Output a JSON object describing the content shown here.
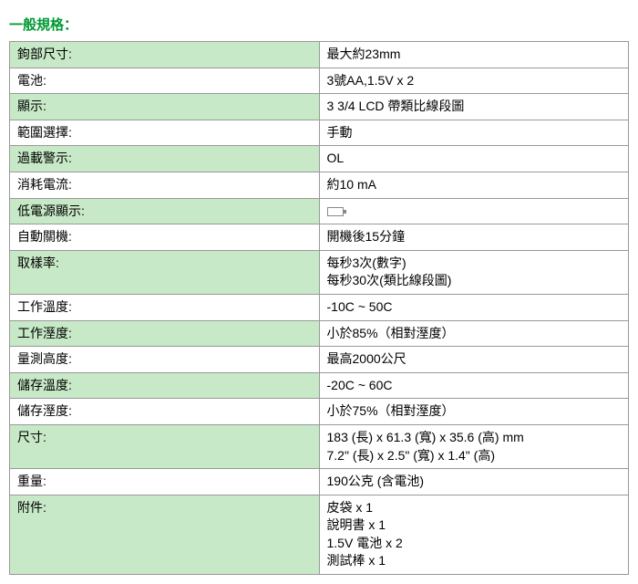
{
  "title": "一般規格：",
  "title_color": "#009933",
  "stripe_color": "#c7e9c7",
  "border_color": "#999999",
  "text_color": "#000000",
  "font_size": 14,
  "rows": [
    {
      "label": "鉤部尺寸:",
      "value": "最大約23mm"
    },
    {
      "label": "電池:",
      "value": "3號AA,1.5V x 2"
    },
    {
      "label": "顯示:",
      "value": "3 3/4 LCD 帶類比線段圖"
    },
    {
      "label": "範圍選擇:",
      "value": "手動"
    },
    {
      "label": "過載警示:",
      "value": "OL"
    },
    {
      "label": "消耗電流:",
      "value": "約10 mA"
    },
    {
      "label": "低電源顯示:",
      "value": "",
      "icon": "battery-icon"
    },
    {
      "label": "自動關機:",
      "value": "開機後15分鐘"
    },
    {
      "label": "取樣率:",
      "value": "每秒3次(數字)\n每秒30次(類比線段圖)"
    },
    {
      "label": "工作溫度:",
      "value": "-10C ~ 50C"
    },
    {
      "label": "工作溼度:",
      "value": "小於85%（相對溼度）"
    },
    {
      "label": "量測高度:",
      "value": "最高2000公尺"
    },
    {
      "label": "儲存溫度:",
      "value": "-20C ~ 60C"
    },
    {
      "label": "儲存溼度:",
      "value": "小於75%（相對溼度）"
    },
    {
      "label": "尺寸:",
      "value": "183 (長) x 61.3 (寬) x 35.6 (高) mm\n7.2\" (長) x 2.5\" (寬) x 1.4\" (高)"
    },
    {
      "label": "重量:",
      "value": "190公克 (含電池)"
    },
    {
      "label": "附件:",
      "value": "皮袋 x 1\n說明書 x 1\n1.5V 電池 x 2\n測試棒 x 1"
    }
  ]
}
